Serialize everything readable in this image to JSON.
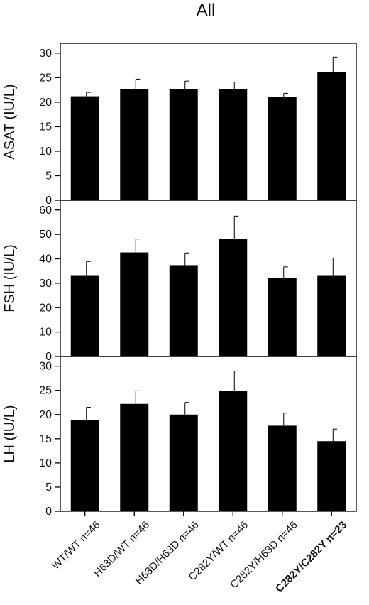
{
  "title": "All",
  "chart_data": [
    {
      "type": "bar",
      "ylabel": "ASAT (IU/L)",
      "ylim": [
        0,
        32
      ],
      "yticks": [
        0,
        5,
        10,
        15,
        20,
        25,
        30
      ],
      "values": [
        21.2,
        22.7,
        22.7,
        22.6,
        21.0,
        26.1
      ],
      "errors": [
        0.8,
        2.0,
        1.6,
        1.5,
        0.8,
        3.1
      ],
      "error_style": "upper-only",
      "bar_color": "#000000"
    },
    {
      "type": "bar",
      "ylabel": "FSH (IU/L)",
      "ylim": [
        0,
        64
      ],
      "yticks": [
        0,
        10,
        20,
        30,
        40,
        50,
        60
      ],
      "values": [
        33.3,
        42.6,
        37.4,
        48.0,
        32.0,
        33.3
      ],
      "errors": [
        5.6,
        5.5,
        5.0,
        9.5,
        4.7,
        7.0
      ],
      "error_style": "upper-only",
      "bar_color": "#000000"
    },
    {
      "type": "bar",
      "ylabel": "LH (IU/L)",
      "ylim": [
        0,
        32
      ],
      "yticks": [
        0,
        5,
        10,
        15,
        20,
        25,
        30
      ],
      "values": [
        18.8,
        22.2,
        20.0,
        24.9,
        17.7,
        14.5
      ],
      "errors": [
        2.7,
        2.7,
        2.5,
        4.1,
        2.6,
        2.5
      ],
      "error_style": "upper-only",
      "bar_color": "#000000"
    }
  ],
  "categories": [
    "WT/WT n=46",
    "H63D/WT n=46",
    "H63D/H63D n=46",
    "C282Y/WT n=46",
    "C282Y/H63D n=46",
    "C282Y/C282Y n=23"
  ],
  "bold_category": "C282Y/C282Y n=23"
}
